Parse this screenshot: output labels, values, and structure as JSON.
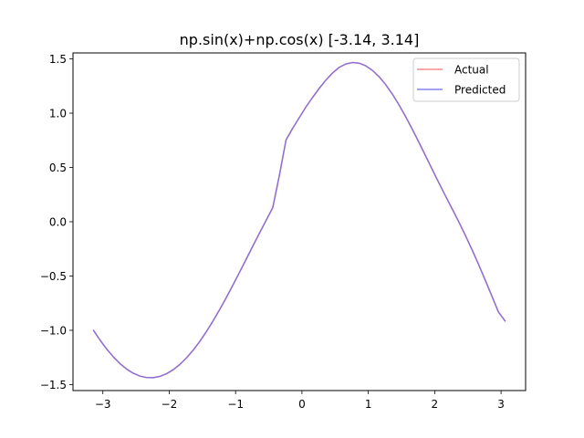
{
  "chart_data": {
    "type": "line",
    "title": "np.sin(x)+np.cos(x) [-3.14, 3.14]",
    "xlabel": "",
    "ylabel": "",
    "xlim": [
      -3.45,
      3.37
    ],
    "ylim": [
      -1.555,
      1.555
    ],
    "xticks": [
      -3,
      -2,
      -1,
      0,
      1,
      2,
      3
    ],
    "xtick_labels": [
      "−3",
      "−2",
      "−1",
      "0",
      "1",
      "2",
      "3"
    ],
    "yticks": [
      -1.5,
      -1.0,
      -0.5,
      0.0,
      0.5,
      1.0,
      1.5
    ],
    "ytick_labels": [
      "−1.5",
      "−1.0",
      "−0.5",
      "0.0",
      "0.5",
      "1.0",
      "1.5"
    ],
    "grid": false,
    "legend_position": "upper right",
    "series": [
      {
        "name": "Actual",
        "color": "#f08080",
        "x": [
          -3.14,
          -3.04,
          -2.94,
          -2.84,
          -2.74,
          -2.64,
          -2.54,
          -2.44,
          -2.34,
          -2.24,
          -2.14,
          -2.04,
          -1.94,
          -1.84,
          -1.74,
          -1.64,
          -1.54,
          -1.44,
          -1.34,
          -1.24,
          -1.14,
          -1.04,
          -0.94,
          -0.84,
          -0.74,
          -0.64,
          -0.54,
          -0.44,
          -0.34,
          -0.24,
          -0.14,
          -0.04,
          0.06,
          0.16,
          0.26,
          0.36,
          0.46,
          0.56,
          0.66,
          0.76,
          0.86,
          0.96,
          1.06,
          1.16,
          1.26,
          1.36,
          1.46,
          1.56,
          1.66,
          1.76,
          1.86,
          1.96,
          2.06,
          2.16,
          2.26,
          2.36,
          2.46,
          2.56,
          2.66,
          2.76,
          2.86,
          2.96,
          3.06
        ],
        "y": [
          -1.0016,
          -1.0927,
          -1.1747,
          -1.2467,
          -1.3081,
          -1.3581,
          -1.3963,
          -1.4222,
          -1.4357,
          -1.4364,
          -1.4245,
          -1.4,
          -1.3632,
          -1.3144,
          -1.2543,
          -1.1835,
          -1.1025,
          -1.0125,
          -0.9144,
          -0.8092,
          -0.6984,
          -0.5831,
          -0.4647,
          -0.3445,
          -0.224,
          -0.1044,
          0.0125,
          0.1301,
          0.4269,
          0.7537,
          0.8608,
          0.9592,
          1.057,
          1.1452,
          1.2283,
          1.3043,
          1.3695,
          1.4215,
          1.4528,
          1.4663,
          1.4607,
          1.4367,
          1.3953,
          1.3373,
          1.2643,
          1.1776,
          1.079,
          0.9709,
          0.8553,
          0.7345,
          0.6106,
          0.4856,
          0.362,
          0.2411,
          0.1227,
          0.0026,
          -0.1221,
          -0.2533,
          -0.3918,
          -0.5354,
          -0.6826,
          -0.8308,
          -0.9136
        ]
      },
      {
        "name": "Predicted",
        "color": "#6464f0",
        "x": [
          -3.14,
          -3.04,
          -2.94,
          -2.84,
          -2.74,
          -2.64,
          -2.54,
          -2.44,
          -2.34,
          -2.24,
          -2.14,
          -2.04,
          -1.94,
          -1.84,
          -1.74,
          -1.64,
          -1.54,
          -1.44,
          -1.34,
          -1.24,
          -1.14,
          -1.04,
          -0.94,
          -0.84,
          -0.74,
          -0.64,
          -0.54,
          -0.44,
          -0.34,
          -0.24,
          -0.14,
          -0.04,
          0.06,
          0.16,
          0.26,
          0.36,
          0.46,
          0.56,
          0.66,
          0.76,
          0.86,
          0.96,
          1.06,
          1.16,
          1.26,
          1.36,
          1.46,
          1.56,
          1.66,
          1.76,
          1.86,
          1.96,
          2.06,
          2.16,
          2.26,
          2.36,
          2.46,
          2.56,
          2.66,
          2.76,
          2.86,
          2.96,
          3.06
        ],
        "y": [
          -1.0016,
          -1.0927,
          -1.1747,
          -1.2467,
          -1.3081,
          -1.3581,
          -1.3963,
          -1.4222,
          -1.4357,
          -1.4364,
          -1.4245,
          -1.4,
          -1.3632,
          -1.3144,
          -1.2543,
          -1.1835,
          -1.1025,
          -1.0125,
          -0.9144,
          -0.8092,
          -0.6984,
          -0.5831,
          -0.4647,
          -0.3445,
          -0.224,
          -0.1044,
          0.0125,
          0.1301,
          0.4269,
          0.7537,
          0.8608,
          0.9592,
          1.057,
          1.1452,
          1.2283,
          1.3043,
          1.3695,
          1.4215,
          1.4528,
          1.4663,
          1.4607,
          1.4367,
          1.3953,
          1.3373,
          1.2643,
          1.1776,
          1.079,
          0.9709,
          0.8553,
          0.7345,
          0.6106,
          0.4856,
          0.362,
          0.2411,
          0.1227,
          0.0026,
          -0.1221,
          -0.2533,
          -0.3918,
          -0.5354,
          -0.6826,
          -0.8308,
          -0.9136
        ]
      }
    ]
  }
}
